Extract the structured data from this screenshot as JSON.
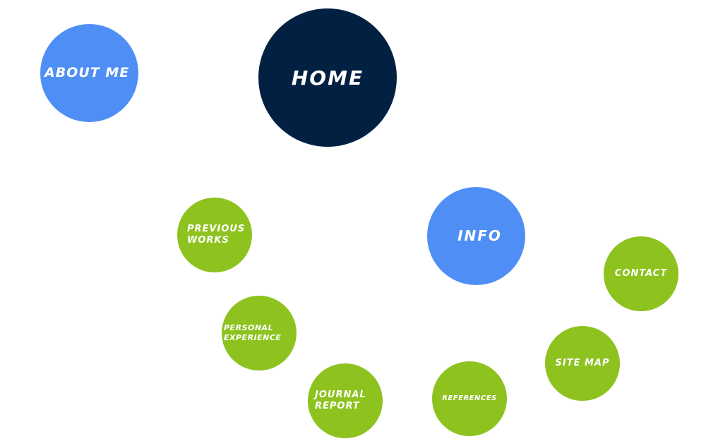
{
  "nav": {
    "about": {
      "label": "ABOUT ME",
      "color": "#4f8ff5"
    },
    "home": {
      "label": "HOME",
      "color": "#022142"
    },
    "info": {
      "label": "INFO",
      "color": "#4f8ff5"
    },
    "previous_works": {
      "line1": "PREVIOUS",
      "line2": "WORKS",
      "color": "#8dc21f"
    },
    "personal_experience": {
      "line1": "PERSONAL",
      "line2": "EXPERIENCE",
      "color": "#8dc21f"
    },
    "journal_report": {
      "line1": "JOURNAL",
      "line2": "REPORT",
      "color": "#8dc21f"
    },
    "references": {
      "label": "REFERENCES",
      "color": "#8dc21f"
    },
    "site_map": {
      "label": "SITE MAP",
      "color": "#8dc21f"
    },
    "contact": {
      "label": "CONTACT",
      "color": "#8dc21f"
    }
  }
}
